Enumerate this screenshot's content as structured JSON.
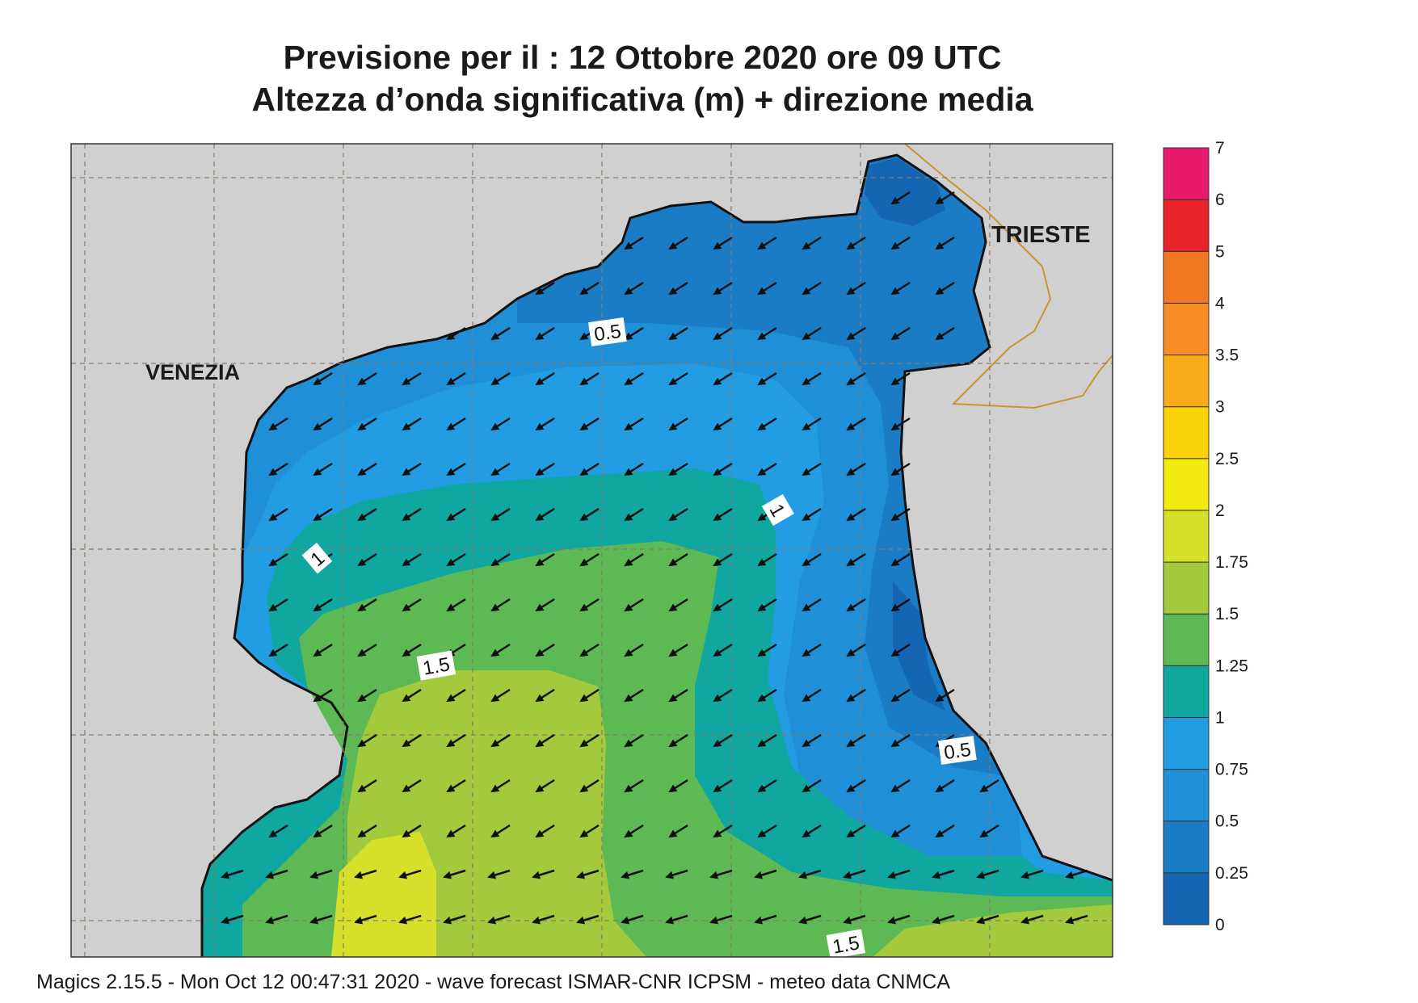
{
  "title": {
    "line1": "Previsione per il  :  12  Ottobre  2020   ore 09 UTC",
    "line2": "Altezza d’onda significativa (m) + direzione media"
  },
  "places": {
    "venezia": "VENEZIA",
    "trieste": "TRIESTE"
  },
  "contour_labels": [
    "0.5",
    "1",
    "1.5",
    "1",
    "1.5",
    "0.5",
    "1.5"
  ],
  "legend": {
    "ticks": [
      "0",
      "0.25",
      "0.5",
      "0.75",
      "1",
      "1.25",
      "1.5",
      "1.75",
      "2",
      "2.5",
      "3",
      "3.5",
      "4",
      "5",
      "6",
      "7"
    ],
    "colors": [
      "#1566b2",
      "#1b7cc6",
      "#1f8fd8",
      "#229de4",
      "#0fa7a0",
      "#5db953",
      "#a3c93d",
      "#d6df2a",
      "#f5ea10",
      "#fbd108",
      "#f9ab1a",
      "#f78d24",
      "#f17722",
      "#e9232a",
      "#e8186c"
    ]
  },
  "footer": "Magics 2.15.5 - Mon Oct 12 00:47:31 2020 - wave forecast  ISMAR-CNR  ICPSM - meteo data   CNMCA"
}
